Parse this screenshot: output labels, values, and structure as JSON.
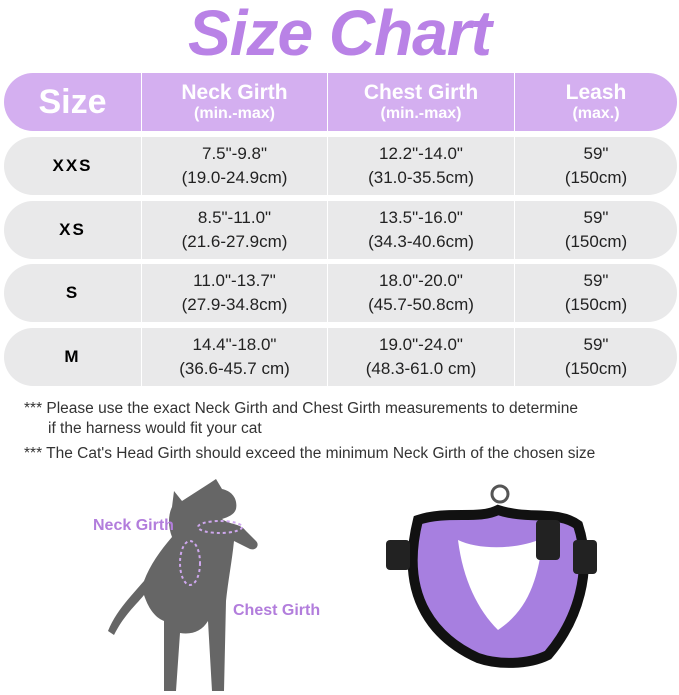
{
  "title": "Size Chart",
  "table": {
    "headers": [
      {
        "main": "Size",
        "sub": ""
      },
      {
        "main": "Neck Girth",
        "sub": "(min.-max)"
      },
      {
        "main": "Chest Girth",
        "sub": "(min.-max)"
      },
      {
        "main": "Leash",
        "sub": "(max.)"
      }
    ],
    "rows": [
      {
        "size": "XXS",
        "neck_in": "7.5\"-9.8\"",
        "neck_cm": "(19.0-24.9cm)",
        "chest_in": "12.2\"-14.0\"",
        "chest_cm": "(31.0-35.5cm)",
        "leash_in": "59\"",
        "leash_cm": "(150cm)"
      },
      {
        "size": "XS",
        "neck_in": "8.5\"-11.0\"",
        "neck_cm": "(21.6-27.9cm)",
        "chest_in": "13.5\"-16.0\"",
        "chest_cm": "(34.3-40.6cm)",
        "leash_in": "59\"",
        "leash_cm": "(150cm)"
      },
      {
        "size": "S",
        "neck_in": "11.0\"-13.7\"",
        "neck_cm": "(27.9-34.8cm)",
        "chest_in": "18.0\"-20.0\"",
        "chest_cm": "(45.7-50.8cm)",
        "leash_in": "59\"",
        "leash_cm": "(150cm)"
      },
      {
        "size": "M",
        "neck_in": "14.4\"-18.0\"",
        "neck_cm": "(36.6-45.7 cm)",
        "chest_in": "19.0\"-24.0\"",
        "chest_cm": "(48.3-61.0 cm)",
        "leash_in": "59\"",
        "leash_cm": "(150cm)"
      }
    ]
  },
  "notes": [
    {
      "line1": "*** Please use the exact Neck Girth and Chest Girth measurements to determine",
      "line2": "if the harness would fit your cat"
    },
    {
      "line1": "*** The Cat's Head Girth should exceed the minimum Neck Girth of the chosen size"
    }
  ],
  "diagram": {
    "neck_label": "Neck Girth",
    "chest_label": "Chest Girth"
  },
  "colors": {
    "accent": "#b982e6",
    "header": "#d4aff0",
    "row": "#e9e9ea",
    "harness": "#a77fe0"
  }
}
